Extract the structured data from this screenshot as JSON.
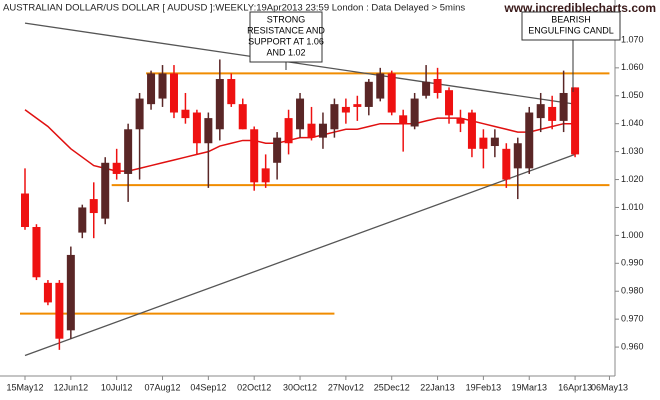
{
  "chart_data": {
    "type": "candlestick",
    "title": "AUSTRALIAN DOLLAR/US DOLLAR [ AUDUSD ]:WEEKLY:19Apr2013 23:59 London : Data Delayed > 5mins",
    "watermark": "www.incrediblecharts.com",
    "categories": [
      "15May12",
      null,
      null,
      null,
      "12Jun12",
      null,
      null,
      null,
      "10Jul12",
      null,
      null,
      null,
      "07Aug12",
      null,
      null,
      null,
      "04Sep12",
      null,
      null,
      null,
      "02Oct12",
      null,
      null,
      null,
      "30Oct12",
      null,
      null,
      null,
      "27Nov12",
      null,
      null,
      null,
      "25Dec12",
      null,
      null,
      null,
      "22Jan13",
      null,
      null,
      null,
      "19Feb13",
      null,
      null,
      null,
      "19Mar13",
      null,
      null,
      null,
      "16Apr13",
      null,
      null,
      "06May13"
    ],
    "open": [
      1.015,
      1.003,
      0.983,
      0.983,
      0.966,
      1.001,
      1.013,
      1.006,
      1.026,
      1.022,
      1.038,
      1.047,
      1.049,
      1.058,
      1.045,
      1.044,
      1.033,
      1.038,
      1.056,
      1.047,
      1.038,
      1.024,
      1.026,
      1.042,
      1.038,
      1.04,
      1.035,
      1.038,
      1.046,
      1.047,
      1.046,
      1.049,
      1.058,
      1.043,
      1.039,
      1.05,
      1.056,
      1.052,
      1.042,
      1.044,
      1.035,
      1.032,
      1.031,
      1.024,
      1.024,
      1.042,
      1.046,
      1.041,
      1.053,
      null,
      null,
      null
    ],
    "high": [
      1.024,
      1.004,
      0.984,
      0.984,
      0.996,
      1.011,
      1.019,
      1.028,
      1.031,
      1.04,
      1.051,
      1.059,
      1.061,
      1.061,
      1.051,
      1.045,
      1.044,
      1.063,
      1.058,
      1.049,
      1.039,
      1.029,
      1.037,
      1.045,
      1.051,
      1.046,
      1.044,
      1.049,
      1.049,
      1.05,
      1.056,
      1.06,
      1.059,
      1.045,
      1.051,
      1.061,
      1.06,
      1.053,
      1.045,
      1.045,
      1.038,
      1.038,
      1.033,
      1.035,
      1.046,
      1.051,
      1.05,
      1.059,
      1.053,
      null,
      null,
      null
    ],
    "low": [
      1.002,
      0.984,
      0.975,
      0.959,
      0.963,
      0.999,
      0.999,
      1.004,
      1.02,
      1.012,
      1.02,
      1.045,
      1.046,
      1.042,
      1.04,
      1.029,
      1.017,
      1.034,
      1.046,
      1.038,
      1.016,
      1.017,
      1.02,
      1.029,
      1.035,
      1.034,
      1.031,
      1.035,
      1.04,
      1.041,
      1.043,
      1.048,
      1.043,
      1.03,
      1.038,
      1.049,
      1.049,
      1.04,
      1.037,
      1.028,
      1.024,
      1.028,
      1.017,
      1.013,
      1.022,
      1.037,
      1.038,
      1.037,
      1.028,
      null,
      null,
      null
    ],
    "close": [
      1.003,
      0.985,
      0.976,
      0.963,
      0.993,
      1.01,
      1.008,
      1.026,
      1.022,
      1.038,
      1.049,
      1.058,
      1.058,
      1.044,
      1.042,
      1.033,
      1.042,
      1.056,
      1.047,
      1.038,
      1.019,
      1.019,
      1.035,
      1.033,
      1.049,
      1.035,
      1.04,
      1.047,
      1.044,
      1.046,
      1.055,
      1.058,
      1.044,
      1.04,
      1.049,
      1.055,
      1.051,
      1.043,
      1.04,
      1.031,
      1.031,
      1.035,
      1.02,
      1.033,
      1.044,
      1.047,
      1.041,
      1.051,
      1.029,
      null,
      null,
      null
    ],
    "up_color": "#5a2626",
    "down_color": "#ee1111",
    "moving_average": {
      "color": "#e01010",
      "values": [
        1.045,
        1.042,
        1.039,
        1.035,
        1.031,
        1.028,
        1.025,
        1.024,
        1.023,
        1.023,
        1.024,
        1.025,
        1.026,
        1.027,
        1.028,
        1.029,
        1.03,
        1.032,
        1.033,
        1.034,
        1.034,
        1.033,
        1.033,
        1.034,
        1.035,
        1.035,
        1.036,
        1.037,
        1.038,
        1.038,
        1.039,
        1.04,
        1.04,
        1.04,
        1.04,
        1.041,
        1.042,
        1.042,
        1.042,
        1.041,
        1.04,
        1.039,
        1.038,
        1.037,
        1.037,
        1.038,
        1.039,
        1.04,
        1.04,
        null,
        null,
        null
      ]
    },
    "levels": [
      {
        "value": 1.058,
        "x": [
          11,
          51
        ],
        "color": "#f08c00"
      },
      {
        "value": 1.018,
        "x": [
          8,
          51
        ],
        "color": "#f08c00"
      },
      {
        "value": 0.972,
        "x": [
          0,
          27
        ],
        "color": "#f08c00"
      }
    ],
    "trendlines": [
      {
        "x": [
          0,
          48
        ],
        "values": [
          1.076,
          1.047
        ],
        "color": "#555555"
      },
      {
        "x": [
          0,
          48
        ],
        "values": [
          0.957,
          1.029
        ],
        "color": "#555555"
      }
    ],
    "annotations": [
      {
        "lines": [
          "STRONG",
          "RESISTANCE AND",
          "SUPPORT AT 1.06",
          "AND 1.02"
        ]
      },
      {
        "lines": [
          "BEARISH",
          "ENGULFING CANDL"
        ]
      }
    ],
    "ylim": [
      0.95,
      1.08
    ],
    "yticks": [
      {
        "value": 0.96,
        "label": "0.960"
      },
      {
        "value": 0.97,
        "label": "0.970"
      },
      {
        "value": 0.98,
        "label": "0.980"
      },
      {
        "value": 0.99,
        "label": "0.990"
      },
      {
        "value": 1.0,
        "label": "1.000"
      },
      {
        "value": 1.01,
        "label": "1.010"
      },
      {
        "value": 1.02,
        "label": "1.020"
      },
      {
        "value": 1.03,
        "label": "1.030"
      },
      {
        "value": 1.04,
        "label": "1.040"
      },
      {
        "value": 1.05,
        "label": "1.050"
      },
      {
        "value": 1.06,
        "label": "1.060"
      },
      {
        "value": 1.07,
        "label": "1.070"
      }
    ]
  }
}
